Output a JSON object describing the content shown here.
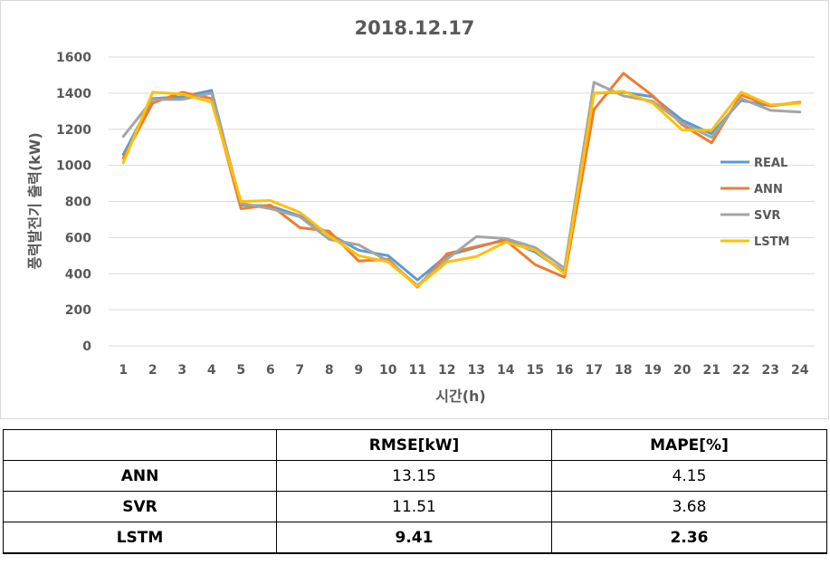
{
  "chart_data": {
    "type": "line",
    "title": "2018.12.17",
    "xlabel": "시간(h)",
    "ylabel": "풍력발전기 출력(kW)",
    "x": [
      1,
      2,
      3,
      4,
      5,
      6,
      7,
      8,
      9,
      10,
      11,
      12,
      13,
      14,
      15,
      16,
      17,
      18,
      19,
      20,
      21,
      22,
      23,
      24
    ],
    "ylim": [
      0,
      1600
    ],
    "yticks": [
      0,
      200,
      400,
      600,
      800,
      1000,
      1200,
      1400,
      1600
    ],
    "legend_position": "right",
    "grid": true,
    "series": [
      {
        "name": "REAL",
        "color": "#5B9BD5",
        "values": [
          1060,
          1370,
          1380,
          1415,
          780,
          775,
          720,
          620,
          530,
          500,
          365,
          500,
          545,
          590,
          520,
          410,
          1400,
          1405,
          1380,
          1250,
          1175,
          1360,
          1330,
          1350
        ]
      },
      {
        "name": "ANN",
        "color": "#ED7D31",
        "values": [
          1040,
          1345,
          1405,
          1370,
          760,
          780,
          655,
          635,
          470,
          480,
          325,
          510,
          550,
          585,
          450,
          380,
          1310,
          1510,
          1385,
          1225,
          1125,
          1390,
          1330,
          1350
        ]
      },
      {
        "name": "SVR",
        "color": "#A5A5A5",
        "values": [
          1160,
          1365,
          1365,
          1400,
          790,
          760,
          715,
          590,
          560,
          470,
          335,
          480,
          605,
          595,
          545,
          430,
          1460,
          1385,
          1355,
          1235,
          1155,
          1370,
          1305,
          1295
        ]
      },
      {
        "name": "LSTM",
        "color": "#FFC000",
        "values": [
          1015,
          1405,
          1395,
          1350,
          800,
          805,
          740,
          610,
          500,
          465,
          330,
          465,
          495,
          575,
          530,
          400,
          1400,
          1410,
          1345,
          1195,
          1195,
          1405,
          1335,
          1345
        ]
      }
    ]
  },
  "table": {
    "headers": [
      "",
      "RMSE[kW]",
      "MAPE[%]"
    ],
    "rows": [
      {
        "model": "ANN",
        "rmse": "13.15",
        "mape": "4.15"
      },
      {
        "model": "SVR",
        "rmse": "11.51",
        "mape": "3.68"
      },
      {
        "model": "LSTM",
        "rmse": "9.41",
        "mape": "2.36"
      }
    ]
  }
}
